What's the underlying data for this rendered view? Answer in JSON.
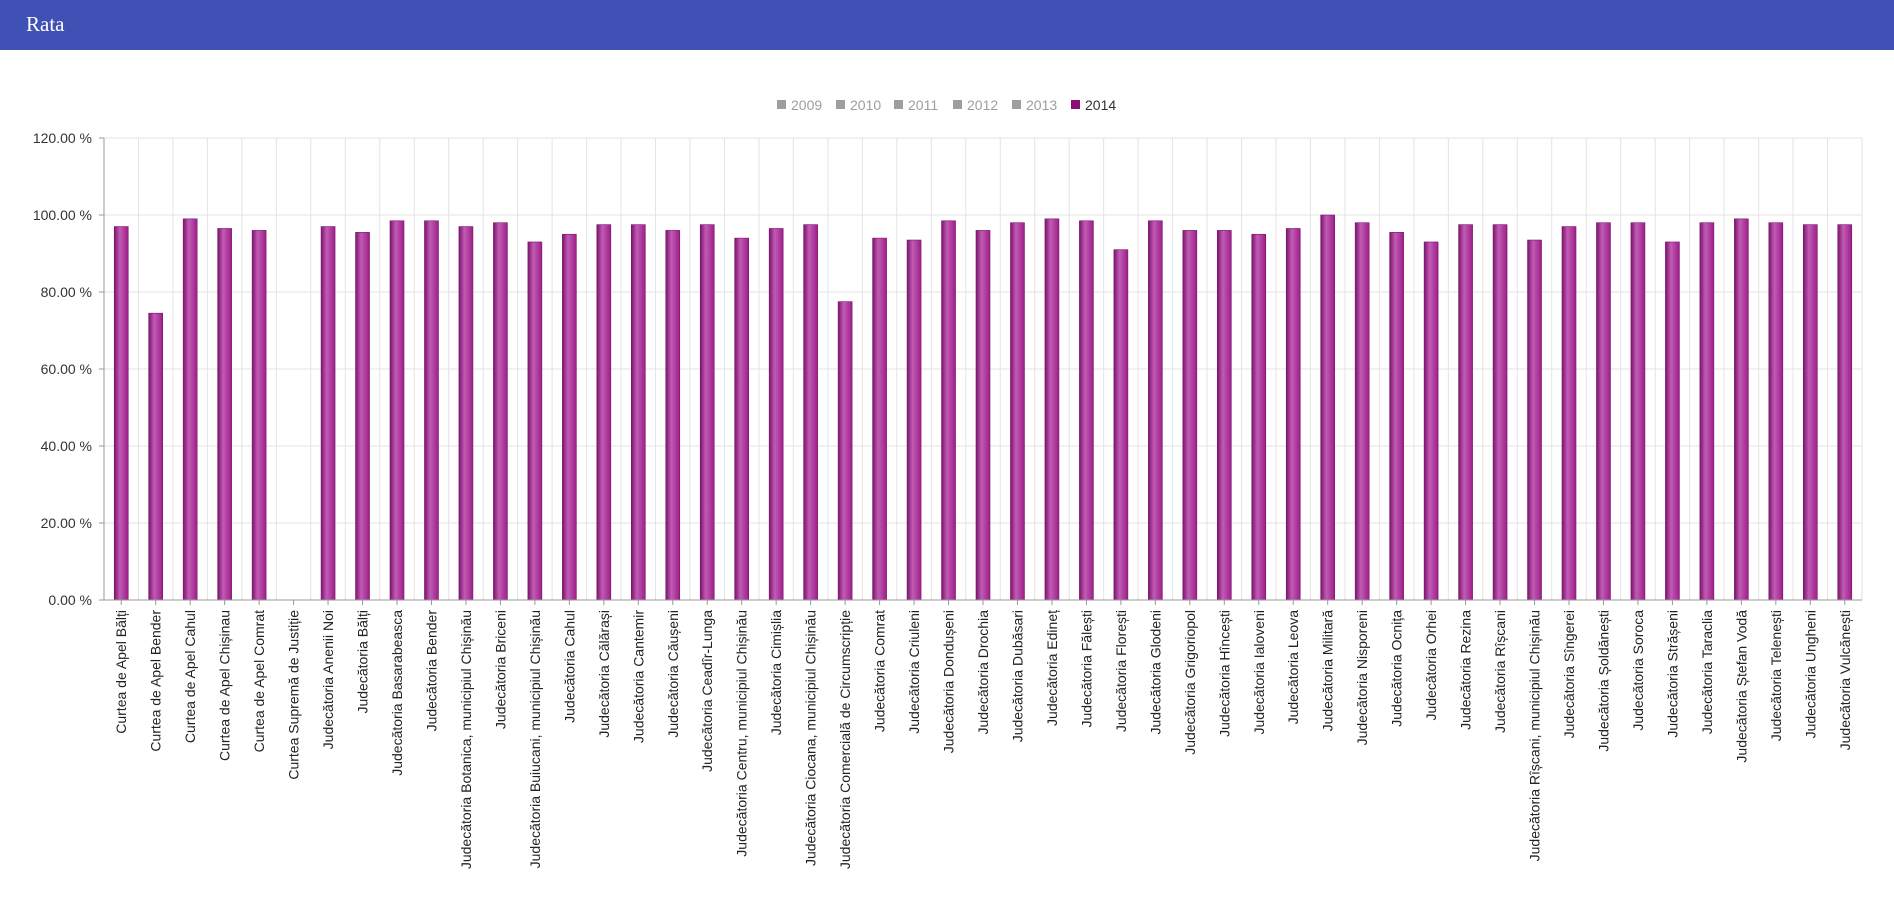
{
  "header": {
    "title": "Rata"
  },
  "colors": {
    "header_bg": "#3f51b5",
    "bar": "#9c1f89",
    "bar_highlight": "#c25bb4",
    "bar_shadow": "#7a146b",
    "legend_inactive": "#9e9e9e",
    "active_series": "#8b0f72",
    "grid": "#e3e3e3"
  },
  "chart_data": {
    "type": "bar",
    "title": "",
    "xlabel": "",
    "ylabel": "",
    "ylim": [
      0,
      120
    ],
    "yticks": [
      0,
      20,
      40,
      60,
      80,
      100,
      120
    ],
    "ytick_labels": [
      "0.00 %",
      "20.00 %",
      "40.00 %",
      "60.00 %",
      "80.00 %",
      "100.00 %",
      "120.00 %"
    ],
    "grid": true,
    "legend_position": "top-center",
    "legend": [
      {
        "name": "2009",
        "active": false
      },
      {
        "name": "2010",
        "active": false
      },
      {
        "name": "2011",
        "active": false
      },
      {
        "name": "2012",
        "active": false
      },
      {
        "name": "2013",
        "active": false
      },
      {
        "name": "2014",
        "active": true
      }
    ],
    "categories": [
      "Curtea de Apel Bălți",
      "Curtea de Apel Bender",
      "Curtea de Apel Cahul",
      "Curtea de Apel Chișinau",
      "Curtea de Apel Comrat",
      "Curtea Supremă de Justiție",
      "Judecătoria Anenii Noi",
      "Judecătoria Bălți",
      "Judecătoria Basarabeasca",
      "Judecătoria Bender",
      "Judecătoria Botanica, municipiul Chișinău",
      "Judecătoria Briceni",
      "Judecătoria Buiucani, municipiul Chișinău",
      "Judecătoria Cahul",
      "Judecătoria Călărași",
      "Judecătoria Cantemir",
      "Judecătoria Căușeni",
      "Judecătoria Ceadîr-Lunga",
      "Judecătoria Centru, municipiul Chișinău",
      "Judecătoria Cimișlia",
      "Judecătoria Ciocana, municipiul Chișinău",
      "Judecătoria Comercială de Circumscripție",
      "Judecătoria Comrat",
      "Judecătoria Criuleni",
      "Judecătoria Dondușeni",
      "Judecătoria Drochia",
      "Judecătoria Dubăsari",
      "Judecătoria Edineț",
      "Judecătoria Fălești",
      "Judecătoria Florești",
      "Judecătoria Glodeni",
      "Judecătoria Grigoriopol",
      "Judecătoria Hîncești",
      "Judecătoria Ialoveni",
      "Judecătoria Leova",
      "Judecătoria Militară",
      "Judecătoria Nisporeni",
      "Judecătoria Ocnița",
      "Judecătoria Orhei",
      "Judecătoria Rezina",
      "Judecătoria Rîșcani",
      "Judecătoria Rîșcani, municipiul Chișinău",
      "Judecătoria Sîngerei",
      "Judecătoria Șoldănești",
      "Judecătoria Soroca",
      "Judecătoria Strășeni",
      "Judecătoria Taraclia",
      "Judecătoria Ștefan Vodă",
      "Judecătoria Telenești",
      "Judecătoria Ungheni",
      "Judecătoria Vulcănești"
    ],
    "series": [
      {
        "name": "2014",
        "values": [
          97,
          74.5,
          99,
          96.5,
          96,
          0,
          97,
          95.5,
          98.5,
          98.5,
          97,
          98,
          93,
          95,
          97.5,
          97.5,
          96,
          97.5,
          94,
          96.5,
          97.5,
          77.5,
          94,
          93.5,
          98.5,
          96,
          98,
          99,
          98.5,
          91,
          98.5,
          96,
          96,
          95,
          96.5,
          100,
          98,
          95.5,
          93,
          97.5,
          97.5,
          93.5,
          97,
          98,
          98,
          93,
          98,
          99,
          98,
          97.5,
          97.5
        ]
      }
    ]
  }
}
